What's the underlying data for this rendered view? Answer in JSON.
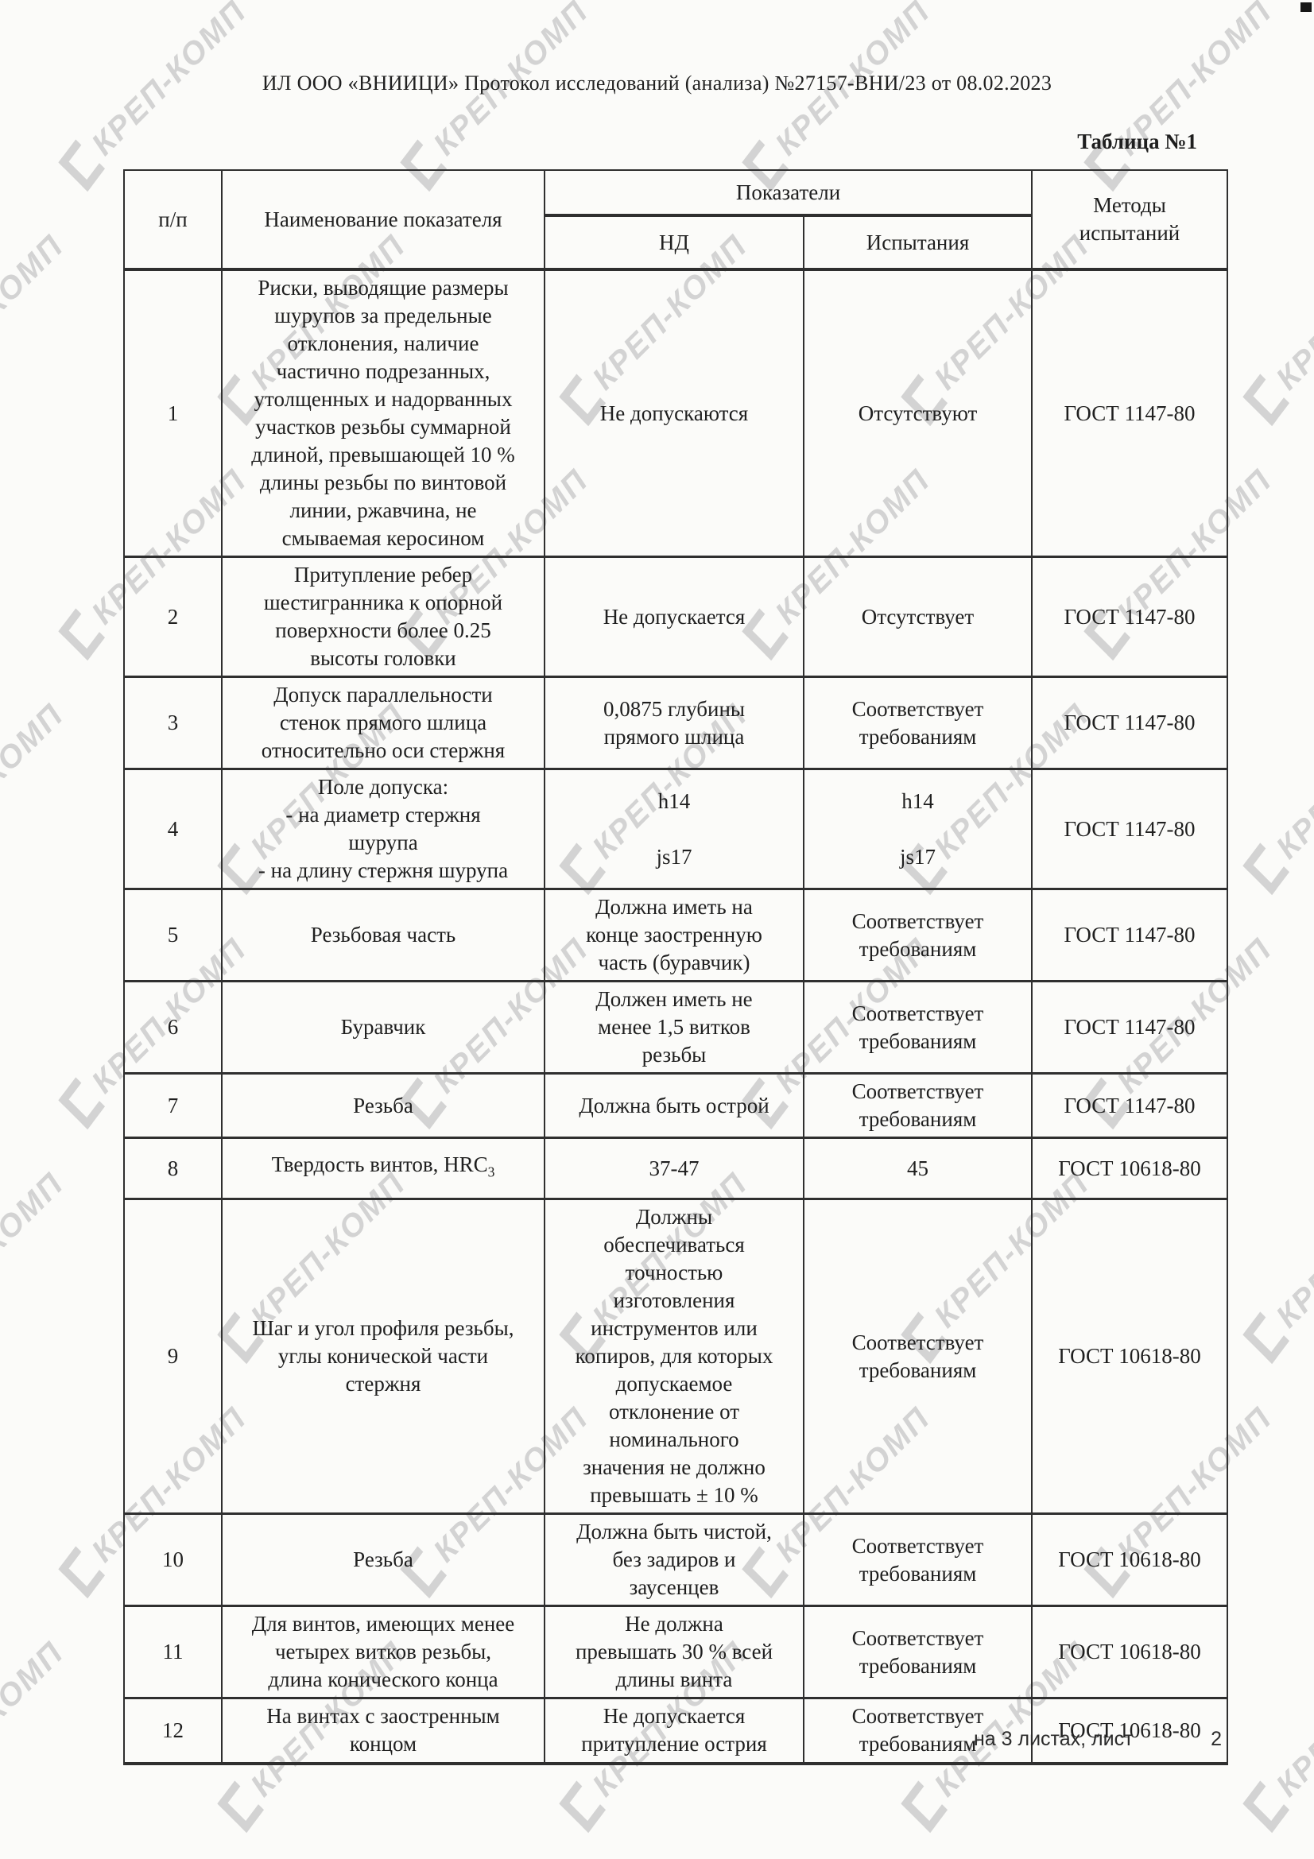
{
  "page": {
    "header_line": "ИЛ ООО «ВНИИЦИ» Протокол исследований (анализа)  №27157-ВНИ/23 от 08.02.2023",
    "table_caption": "Таблица №1",
    "footer_sheets": "на 3 листах, лист",
    "footer_page": "2"
  },
  "watermark": {
    "text": "КРЕП-КОМП"
  },
  "table": {
    "headers": {
      "num": "п/п",
      "name": "Наименование показателя",
      "indicators": "Показатели",
      "nd": "НД",
      "tests": "Испытания",
      "methods": "Методы\nиспытаний"
    },
    "rows": [
      {
        "num": "1",
        "name": "Риски, выводящие размеры\nшурупов за предельные\nотклонения, наличие\nчастично подрезанных,\nутолщенных и надорванных\nучастков резьбы суммарной\nдлиной, превышающей 10 %\nдлины резьбы по винтовой\nлинии, ржавчина, не\nсмываемая керосином",
        "nd": "Не допускаются",
        "tests": "Отсутствуют",
        "method": "ГОСТ 1147-80"
      },
      {
        "num": "2",
        "name": "Притупление ребер\nшестигранника к опорной\nповерхности более 0.25\nвысоты головки",
        "nd": "Не допускается",
        "tests": "Отсутствует",
        "method": "ГОСТ 1147-80"
      },
      {
        "num": "3",
        "name": "Допуск параллельности\nстенок прямого шлица\nотносительно оси стержня",
        "nd": "0,0875 глубины\nпрямого шлица",
        "tests": "Соответствует\nтребованиям",
        "method": "ГОСТ 1147-80"
      },
      {
        "num": "4",
        "name": "Поле допуска:\n- на диаметр стержня\nшурупа\n- на длину стержня шурупа",
        "nd": "h14\n\njs17",
        "tests": "h14\n\njs17",
        "method": "ГОСТ 1147-80"
      },
      {
        "num": "5",
        "name": "Резьбовая часть",
        "nd": "Должна иметь на\nконце заостренную\nчасть (буравчик)",
        "tests": "Соответствует\nтребованиям",
        "method": "ГОСТ 1147-80"
      },
      {
        "num": "6",
        "name": "Буравчик",
        "nd": "Должен иметь не\nменее 1,5 витков\nрезьбы",
        "tests": "Соответствует\nтребованиям",
        "method": "ГОСТ 1147-80"
      },
      {
        "num": "7",
        "name": "Резьба",
        "nd": "Должна быть острой",
        "tests": "Соответствует\nтребованиям",
        "method": "ГОСТ 1147-80"
      },
      {
        "num": "8",
        "name": "Твердость винтов, HRC",
        "name_sub": "3",
        "nd": "37-47",
        "tests": "45",
        "method": "ГОСТ 10618-80"
      },
      {
        "num": "9",
        "name": "Шаг и угол профиля резьбы,\nуглы конической части\nстержня",
        "nd": "Должны\nобеспечиваться\nточностью\nизготовления\nинструментов или\nкопиров, для которых\nдопускаемое\nотклонение от\nноминального\nзначения не должно\nпревышать ± 10 %",
        "tests": "Соответствует\nтребованиям",
        "method": "ГОСТ 10618-80"
      },
      {
        "num": "10",
        "name": "Резьба",
        "nd": "Должна быть чистой,\nбез задиров и\nзаусенцев",
        "tests": "Соответствует\nтребованиям",
        "method": "ГОСТ 10618-80"
      },
      {
        "num": "11",
        "name": "Для винтов, имеющих менее\nчетырех витков резьбы,\nдлина конического конца",
        "nd": "Не должна\nпревышать 30 % всей\nдлины винта",
        "tests": "Соответствует\nтребованиям",
        "method": "ГОСТ 10618-80"
      },
      {
        "num": "12",
        "name": "На винтах с заостренным\nконцом",
        "nd": "Не допускается\nпритупление острия",
        "tests": "Соответствует\nтребованиям",
        "method": "ГОСТ 10618-80"
      }
    ]
  }
}
